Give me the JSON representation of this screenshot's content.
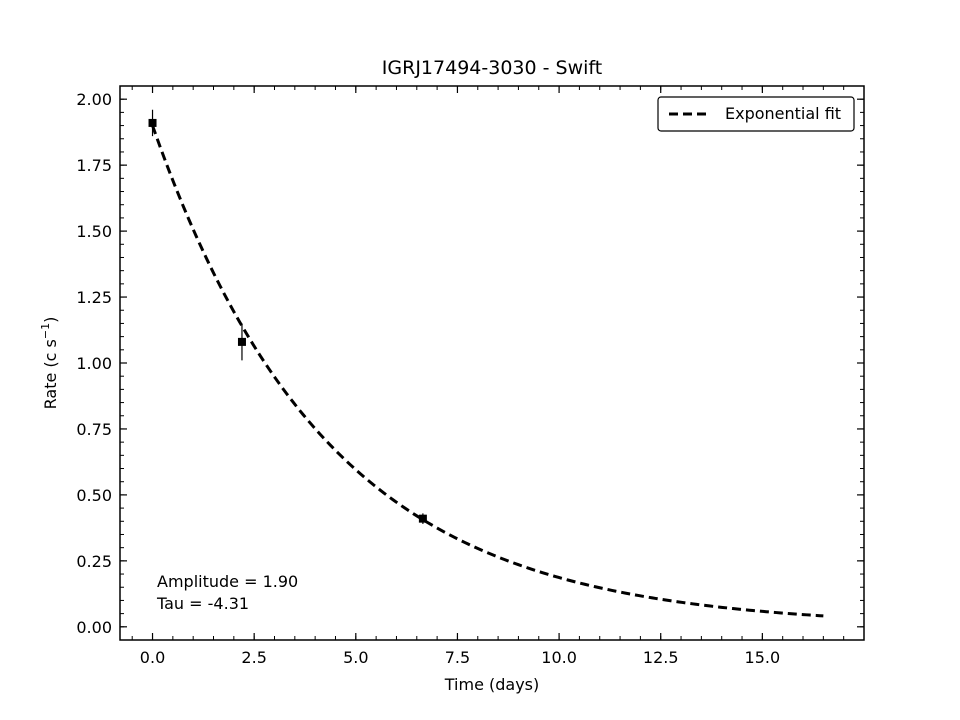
{
  "chart_data": {
    "type": "scatter",
    "title": "IGRJ17494-3030 - Swift",
    "xlabel": "Time (days)",
    "ylabel": "Rate (c s",
    "ylabel_sup": "−1",
    "ylabel_close": ")",
    "xlim": [
      -0.8,
      17.5
    ],
    "ylim": [
      -0.05,
      2.05
    ],
    "xticks": [
      0.0,
      2.5,
      5.0,
      7.5,
      10.0,
      12.5,
      15.0
    ],
    "xtick_labels": [
      "0.0",
      "2.5",
      "5.0",
      "7.5",
      "10.0",
      "12.5",
      "15.0"
    ],
    "yticks": [
      0.0,
      0.25,
      0.5,
      0.75,
      1.0,
      1.25,
      1.5,
      1.75,
      2.0
    ],
    "ytick_labels": [
      "0.00",
      "0.25",
      "0.50",
      "0.75",
      "1.00",
      "1.25",
      "1.50",
      "1.75",
      "2.00"
    ],
    "points": [
      {
        "x": 0.0,
        "y": 1.91,
        "yerr": 0.05
      },
      {
        "x": 2.2,
        "y": 1.08,
        "yerr": 0.07
      },
      {
        "x": 6.65,
        "y": 0.41,
        "yerr": 0.02
      }
    ],
    "fit": {
      "name": "Exponential fit",
      "amplitude": 1.9,
      "tau": -4.31,
      "x_range": [
        0.0,
        16.5
      ],
      "style": "dashed"
    },
    "legend_position": "upper-right",
    "annotations": [
      "Amplitude = 1.90",
      "Tau = -4.31"
    ],
    "grid": false,
    "colors": {
      "marker": "#000000",
      "fit": "#000000"
    }
  }
}
